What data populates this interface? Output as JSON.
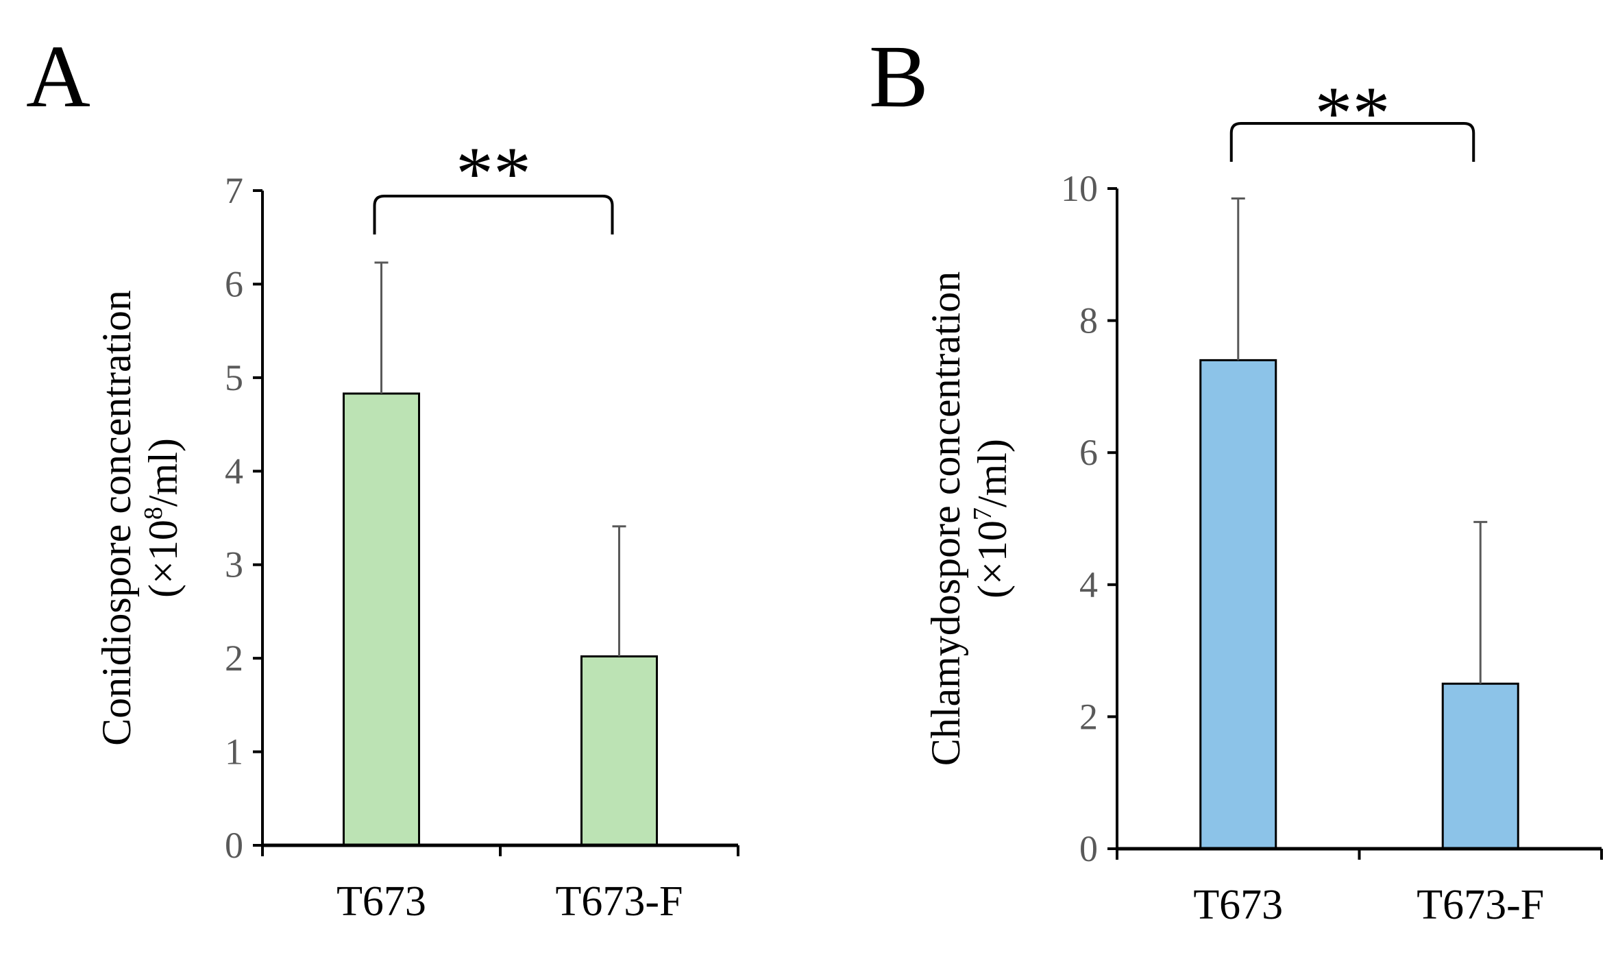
{
  "chart_data": [
    {
      "panel": "A",
      "type": "bar",
      "categories": [
        "T673",
        "T673-F"
      ],
      "values": [
        4.83,
        2.02
      ],
      "errors": [
        1.4,
        1.39
      ],
      "ylim": [
        0,
        7
      ],
      "yticks": [
        "0",
        "1",
        "2",
        "3",
        "4",
        "5",
        "6",
        "7"
      ],
      "ylabel_line1": "Conidiospore concentration",
      "ylabel_line2_prefix": "(×10",
      "ylabel_line2_sup": "8",
      "ylabel_line2_suffix": "/ml)",
      "significance": "**",
      "bar_color": "#bce3b4",
      "error_color": "#595959"
    },
    {
      "panel": "B",
      "type": "bar",
      "categories": [
        "T673",
        "T673-F"
      ],
      "values": [
        7.4,
        2.5
      ],
      "errors": [
        2.45,
        2.45
      ],
      "ylim": [
        0,
        10
      ],
      "yticks": [
        "0",
        "2",
        "4",
        "6",
        "8",
        "10"
      ],
      "ylabel_line1": "Chlamydospore concentration",
      "ylabel_line2_prefix": "(×10",
      "ylabel_line2_sup": "7",
      "ylabel_line2_suffix": "/ml)",
      "significance": "**",
      "bar_color": "#8cc3e8",
      "error_color": "#595959"
    }
  ]
}
